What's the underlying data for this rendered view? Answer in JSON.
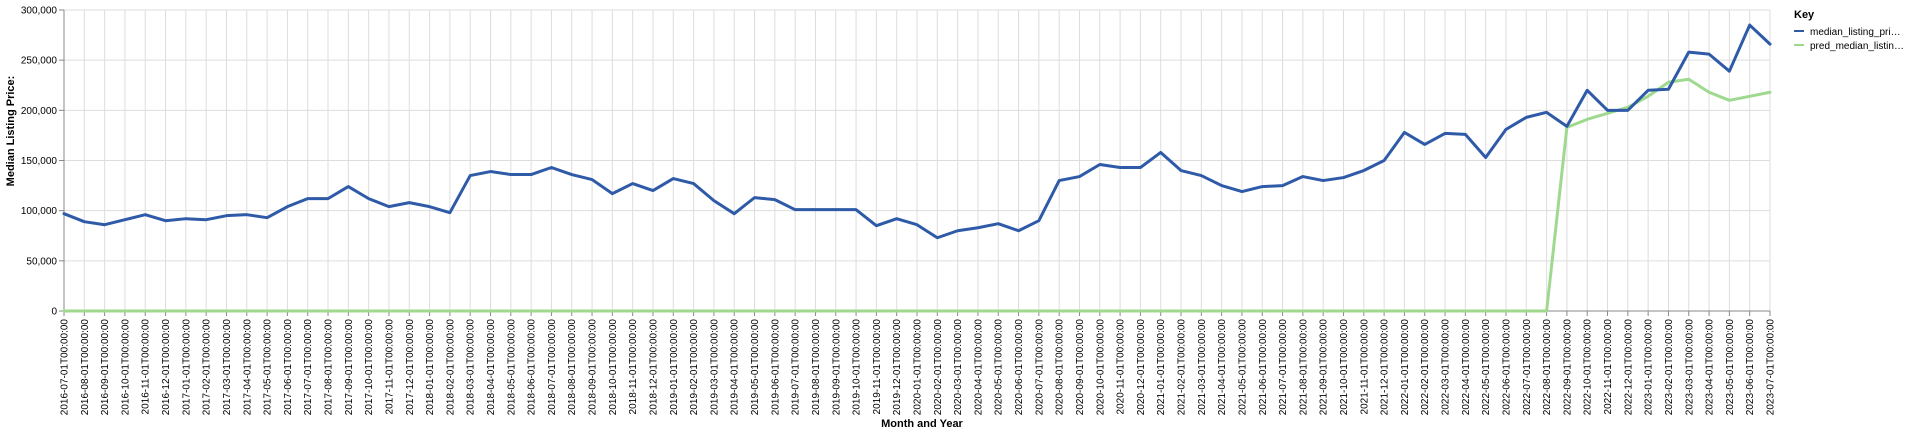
{
  "chart_data": {
    "type": "line",
    "xlabel": "Month and Year",
    "ylabel": "Median Listing Price:",
    "ylim": [
      0,
      300000
    ],
    "y_ticks": [
      "0",
      "50,000",
      "100,000",
      "150,000",
      "200,000",
      "250,000",
      "300,000"
    ],
    "y_tick_values": [
      0,
      50000,
      100000,
      150000,
      200000,
      250000,
      300000
    ],
    "grid": true,
    "legend": {
      "title": "Key",
      "placement": "top-right"
    },
    "categories": [
      "2016-07-01T00:00:00",
      "2016-08-01T00:00:00",
      "2016-09-01T00:00:00",
      "2016-10-01T00:00:00",
      "2016-11-01T00:00:00",
      "2016-12-01T00:00:00",
      "2017-01-01T00:00:00",
      "2017-02-01T00:00:00",
      "2017-03-01T00:00:00",
      "2017-04-01T00:00:00",
      "2017-05-01T00:00:00",
      "2017-06-01T00:00:00",
      "2017-07-01T00:00:00",
      "2017-08-01T00:00:00",
      "2017-09-01T00:00:00",
      "2017-10-01T00:00:00",
      "2017-11-01T00:00:00",
      "2017-12-01T00:00:00",
      "2018-01-01T00:00:00",
      "2018-02-01T00:00:00",
      "2018-03-01T00:00:00",
      "2018-04-01T00:00:00",
      "2018-05-01T00:00:00",
      "2018-06-01T00:00:00",
      "2018-07-01T00:00:00",
      "2018-08-01T00:00:00",
      "2018-09-01T00:00:00",
      "2018-10-01T00:00:00",
      "2018-11-01T00:00:00",
      "2018-12-01T00:00:00",
      "2019-01-01T00:00:00",
      "2019-02-01T00:00:00",
      "2019-03-01T00:00:00",
      "2019-04-01T00:00:00",
      "2019-05-01T00:00:00",
      "2019-06-01T00:00:00",
      "2019-07-01T00:00:00",
      "2019-08-01T00:00:00",
      "2019-09-01T00:00:00",
      "2019-10-01T00:00:00",
      "2019-11-01T00:00:00",
      "2019-12-01T00:00:00",
      "2020-01-01T00:00:00",
      "2020-02-01T00:00:00",
      "2020-03-01T00:00:00",
      "2020-04-01T00:00:00",
      "2020-05-01T00:00:00",
      "2020-06-01T00:00:00",
      "2020-07-01T00:00:00",
      "2020-08-01T00:00:00",
      "2020-09-01T00:00:00",
      "2020-10-01T00:00:00",
      "2020-11-01T00:00:00",
      "2020-12-01T00:00:00",
      "2021-01-01T00:00:00",
      "2021-02-01T00:00:00",
      "2021-03-01T00:00:00",
      "2021-04-01T00:00:00",
      "2021-05-01T00:00:00",
      "2021-06-01T00:00:00",
      "2021-07-01T00:00:00",
      "2021-08-01T00:00:00",
      "2021-09-01T00:00:00",
      "2021-10-01T00:00:00",
      "2021-11-01T00:00:00",
      "2021-12-01T00:00:00",
      "2022-01-01T00:00:00",
      "2022-02-01T00:00:00",
      "2022-03-01T00:00:00",
      "2022-04-01T00:00:00",
      "2022-05-01T00:00:00",
      "2022-06-01T00:00:00",
      "2022-07-01T00:00:00",
      "2022-08-01T00:00:00",
      "2022-09-01T00:00:00",
      "2022-10-01T00:00:00",
      "2022-11-01T00:00:00",
      "2022-12-01T00:00:00",
      "2023-01-01T00:00:00",
      "2023-02-01T00:00:00",
      "2023-03-01T00:00:00",
      "2023-04-01T00:00:00",
      "2023-05-01T00:00:00",
      "2023-06-01T00:00:00",
      "2023-07-01T00:00:00"
    ],
    "series": [
      {
        "name": "median_listing_pri…",
        "color": "#2e5aa8",
        "values": [
          97000,
          89000,
          86000,
          91000,
          96000,
          90000,
          92000,
          91000,
          95000,
          96000,
          93000,
          104000,
          112000,
          112000,
          124000,
          112000,
          104000,
          108000,
          104000,
          98000,
          135000,
          139000,
          136000,
          136000,
          143000,
          136000,
          131000,
          117000,
          127000,
          120000,
          132000,
          127000,
          110000,
          97000,
          113000,
          111000,
          101000,
          101000,
          101000,
          101000,
          85000,
          92000,
          86000,
          73000,
          80000,
          83000,
          87000,
          80000,
          90000,
          130000,
          134000,
          146000,
          143000,
          143000,
          158000,
          140000,
          135000,
          125000,
          119000,
          124000,
          125000,
          134000,
          130000,
          133000,
          140000,
          150000,
          178000,
          166000,
          177000,
          176000,
          153000,
          181000,
          193000,
          198000,
          184000,
          220000,
          200000,
          200000,
          220000,
          221000,
          258000,
          256000,
          239000,
          285000,
          266000
        ]
      },
      {
        "name": "pred_median_listin…",
        "color": "#9fd98f",
        "values": [
          0,
          0,
          0,
          0,
          0,
          0,
          0,
          0,
          0,
          0,
          0,
          0,
          0,
          0,
          0,
          0,
          0,
          0,
          0,
          0,
          0,
          0,
          0,
          0,
          0,
          0,
          0,
          0,
          0,
          0,
          0,
          0,
          0,
          0,
          0,
          0,
          0,
          0,
          0,
          0,
          0,
          0,
          0,
          0,
          0,
          0,
          0,
          0,
          0,
          0,
          0,
          0,
          0,
          0,
          0,
          0,
          0,
          0,
          0,
          0,
          0,
          0,
          0,
          0,
          0,
          0,
          0,
          0,
          0,
          0,
          0,
          0,
          0,
          0,
          183000,
          191000,
          197000,
          203000,
          214000,
          228000,
          231000,
          218000,
          210000,
          214000,
          218000
        ]
      }
    ]
  }
}
